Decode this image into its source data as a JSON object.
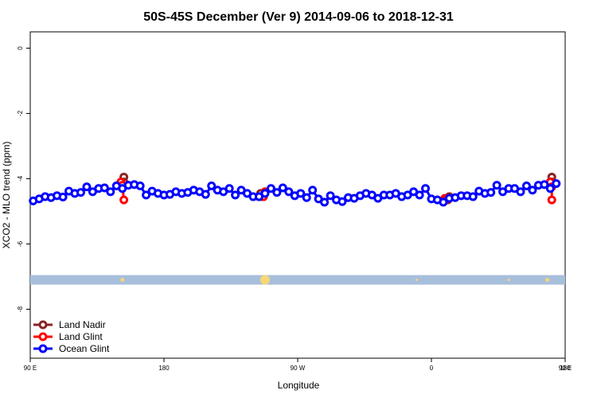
{
  "chart_data": {
    "type": "line",
    "title": "50S-45S December (Ver 9)   2014-09-06 to 2018-12-31",
    "xlabel": "Longitude",
    "ylabel": "XCO2 - MLO trend (ppm)",
    "xlim": [
      90,
      450
    ],
    "ylim": [
      -9.5,
      0.5
    ],
    "x_ticks": [
      {
        "value": 90,
        "label": "90 E"
      },
      {
        "value": 180,
        "label": "180"
      },
      {
        "value": 270,
        "label": "90 W"
      },
      {
        "value": 360,
        "label": "0"
      },
      {
        "value": 450,
        "label": "90 E"
      },
      {
        "value": 540,
        "label": "180"
      }
    ],
    "y_ticks": [
      {
        "value": 0,
        "label": "0"
      },
      {
        "value": -2,
        "label": "-2"
      },
      {
        "value": -4,
        "label": "-4"
      },
      {
        "value": -6,
        "label": "-6"
      },
      {
        "value": -8,
        "label": "-8"
      }
    ],
    "grid": false,
    "legend_position": "bottom-left",
    "band": {
      "y": -7.1,
      "color": "#a8bfdc"
    },
    "band_markers": [
      {
        "x": 152,
        "size": "small"
      },
      {
        "x": 248,
        "size": "large"
      },
      {
        "x": 350,
        "size": "tiny"
      },
      {
        "x": 412,
        "size": "tiny"
      },
      {
        "x": 438,
        "size": "small"
      }
    ],
    "series": [
      {
        "name": "Land Nadir",
        "color": "#8b2323",
        "segments": [
          [
            [
              153,
              -3.95
            ],
            [
              153,
              -4.1
            ]
          ],
          [
            [
              245,
              -4.45
            ],
            [
              246,
              -4.55
            ]
          ],
          [
            [
              371,
              -4.65
            ],
            [
              372,
              -4.55
            ]
          ],
          [
            [
              441,
              -3.95
            ],
            [
              441,
              -4.1
            ]
          ]
        ]
      },
      {
        "name": "Land Glint",
        "color": "#ff0000",
        "segments": [
          [
            [
              151,
              -4.1
            ],
            [
              152,
              -4.2
            ],
            [
              153,
              -4.65
            ]
          ],
          [
            [
              247,
              -4.55
            ],
            [
              248,
              -4.4
            ]
          ],
          [
            [
              369,
              -4.6
            ],
            [
              370,
              -4.65
            ]
          ],
          [
            [
              440,
              -4.1
            ],
            [
              441,
              -4.25
            ],
            [
              441,
              -4.65
            ]
          ]
        ]
      },
      {
        "name": "Ocean Glint",
        "color": "#0000ff",
        "points": [
          [
            92,
            -4.68
          ],
          [
            96,
            -4.62
          ],
          [
            100,
            -4.55
          ],
          [
            104,
            -4.58
          ],
          [
            108,
            -4.52
          ],
          [
            112,
            -4.56
          ],
          [
            116,
            -4.38
          ],
          [
            120,
            -4.45
          ],
          [
            124,
            -4.42
          ],
          [
            128,
            -4.25
          ],
          [
            132,
            -4.4
          ],
          [
            136,
            -4.3
          ],
          [
            140,
            -4.28
          ],
          [
            144,
            -4.4
          ],
          [
            148,
            -4.22
          ],
          [
            152,
            -4.3
          ],
          [
            156,
            -4.2
          ],
          [
            160,
            -4.18
          ],
          [
            164,
            -4.22
          ],
          [
            168,
            -4.5
          ],
          [
            172,
            -4.38
          ],
          [
            176,
            -4.45
          ],
          [
            180,
            -4.5
          ],
          [
            184,
            -4.48
          ],
          [
            188,
            -4.4
          ],
          [
            192,
            -4.45
          ],
          [
            196,
            -4.42
          ],
          [
            200,
            -4.35
          ],
          [
            204,
            -4.4
          ],
          [
            208,
            -4.48
          ],
          [
            212,
            -4.22
          ],
          [
            216,
            -4.35
          ],
          [
            220,
            -4.4
          ],
          [
            224,
            -4.3
          ],
          [
            228,
            -4.5
          ],
          [
            232,
            -4.35
          ],
          [
            236,
            -4.45
          ],
          [
            240,
            -4.55
          ],
          [
            244,
            -4.55
          ],
          [
            248,
            -4.45
          ],
          [
            252,
            -4.3
          ],
          [
            256,
            -4.42
          ],
          [
            260,
            -4.28
          ],
          [
            264,
            -4.4
          ],
          [
            268,
            -4.52
          ],
          [
            272,
            -4.45
          ],
          [
            276,
            -4.58
          ],
          [
            280,
            -4.35
          ],
          [
            284,
            -4.62
          ],
          [
            288,
            -4.72
          ],
          [
            292,
            -4.52
          ],
          [
            296,
            -4.65
          ],
          [
            300,
            -4.7
          ],
          [
            304,
            -4.58
          ],
          [
            308,
            -4.6
          ],
          [
            312,
            -4.52
          ],
          [
            316,
            -4.45
          ],
          [
            320,
            -4.5
          ],
          [
            324,
            -4.6
          ],
          [
            328,
            -4.5
          ],
          [
            332,
            -4.5
          ],
          [
            336,
            -4.45
          ],
          [
            340,
            -4.55
          ],
          [
            344,
            -4.5
          ],
          [
            348,
            -4.4
          ],
          [
            352,
            -4.5
          ],
          [
            356,
            -4.3
          ],
          [
            360,
            -4.62
          ],
          [
            364,
            -4.65
          ],
          [
            368,
            -4.72
          ],
          [
            372,
            -4.6
          ],
          [
            376,
            -4.58
          ],
          [
            380,
            -4.52
          ],
          [
            384,
            -4.52
          ],
          [
            388,
            -4.55
          ],
          [
            392,
            -4.38
          ],
          [
            396,
            -4.45
          ],
          [
            400,
            -4.42
          ],
          [
            404,
            -4.2
          ],
          [
            408,
            -4.4
          ],
          [
            412,
            -4.3
          ],
          [
            416,
            -4.3
          ],
          [
            420,
            -4.4
          ],
          [
            424,
            -4.22
          ],
          [
            428,
            -4.35
          ],
          [
            432,
            -4.2
          ],
          [
            436,
            -4.18
          ],
          [
            440,
            -4.3
          ],
          [
            444,
            -4.15
          ]
        ]
      }
    ]
  }
}
